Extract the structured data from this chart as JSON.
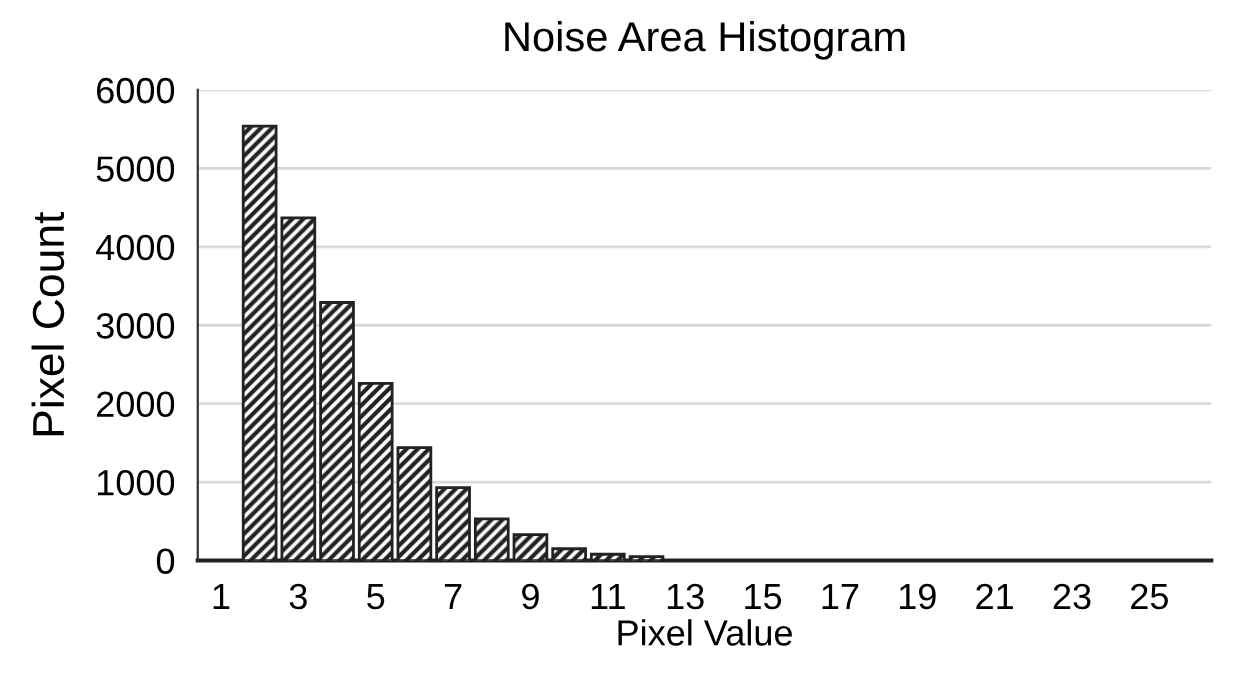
{
  "chart_data": {
    "type": "bar",
    "title": "Noise Area Histogram",
    "xlabel": "Pixel Value",
    "ylabel": "Pixel Count",
    "categories": [
      "1",
      null,
      "3",
      null,
      "5",
      null,
      "7",
      null,
      "9",
      null,
      "11",
      null,
      "13",
      null,
      "15",
      null,
      "17",
      null,
      "19",
      null,
      "21",
      null,
      "23",
      null,
      "25",
      null
    ],
    "values": [
      0,
      5540,
      4370,
      3290,
      2260,
      1440,
      930,
      530,
      330,
      150,
      80,
      50,
      null,
      0,
      0,
      0,
      0,
      0,
      0,
      0,
      0,
      0,
      0,
      0,
      0,
      0
    ],
    "color": "#222222",
    "ylim": [
      0,
      6000
    ],
    "yticks": [
      0,
      1000,
      2000,
      3000,
      4000,
      5000,
      6000
    ],
    "grid": "y",
    "legend": false
  }
}
